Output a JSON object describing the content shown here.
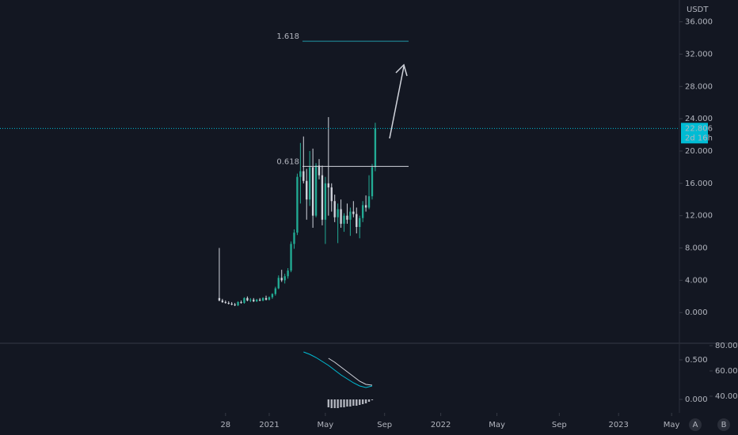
{
  "chart_data": [
    {
      "type": "candlestick",
      "currency": "USDT",
      "x": [
        0,
        1,
        2,
        3,
        4,
        5,
        6,
        7,
        8,
        9,
        10,
        11,
        12,
        13,
        14,
        15,
        16,
        17,
        18,
        19,
        20,
        21,
        22,
        23,
        24,
        25,
        26,
        27,
        28,
        29,
        30,
        31,
        32,
        33,
        34,
        35,
        36,
        37,
        38,
        39,
        40,
        41,
        42,
        43,
        44,
        45,
        46,
        47,
        48,
        49,
        50
      ],
      "open": [
        1.8,
        1.5,
        1.3,
        1.2,
        1.1,
        1.0,
        0.9,
        1.3,
        1.2,
        1.8,
        1.5,
        1.6,
        1.4,
        1.6,
        1.5,
        1.8,
        1.6,
        1.9,
        2.3,
        3.0,
        4.3,
        4.0,
        4.5,
        5.2,
        8.5,
        9.9,
        16.8,
        17.5,
        16.3,
        14.0,
        18.0,
        12.0,
        18.2,
        17.0,
        11.5,
        16.0,
        15.5,
        13.8,
        11.8,
        12.8,
        11.0,
        12.0,
        11.5,
        12.5,
        12.2,
        10.6,
        11.7,
        13.3,
        13.0,
        14.4,
        18.0
      ],
      "high": [
        8.0,
        1.7,
        1.5,
        1.4,
        1.3,
        1.2,
        1.4,
        1.5,
        1.9,
        2.0,
        1.8,
        1.8,
        1.7,
        1.8,
        1.9,
        2.1,
        2.0,
        2.4,
        3.2,
        4.6,
        5.3,
        4.8,
        5.5,
        8.8,
        10.3,
        17.2,
        21.0,
        21.8,
        17.8,
        20.0,
        20.3,
        18.5,
        19.0,
        18.2,
        16.8,
        24.2,
        16.0,
        14.6,
        13.5,
        14.0,
        12.3,
        13.5,
        13.0,
        13.8,
        13.0,
        12.0,
        13.8,
        14.5,
        17.0,
        18.4,
        23.5
      ],
      "low": [
        1.4,
        1.2,
        1.1,
        1.0,
        0.9,
        0.8,
        0.8,
        1.1,
        1.1,
        1.4,
        1.3,
        1.3,
        1.3,
        1.4,
        1.4,
        1.5,
        1.5,
        1.7,
        2.1,
        2.9,
        3.8,
        3.6,
        4.2,
        5.0,
        7.9,
        9.6,
        13.5,
        16.0,
        11.5,
        13.2,
        10.5,
        11.8,
        16.5,
        10.8,
        8.5,
        12.0,
        12.5,
        11.2,
        8.6,
        10.5,
        10.0,
        11.0,
        9.5,
        11.8,
        9.8,
        9.2,
        11.2,
        12.5,
        12.8,
        14.0,
        17.5
      ],
      "close": [
        1.5,
        1.3,
        1.2,
        1.1,
        1.0,
        0.9,
        1.3,
        1.2,
        1.8,
        1.5,
        1.6,
        1.4,
        1.6,
        1.5,
        1.8,
        1.6,
        1.9,
        2.3,
        3.0,
        4.3,
        4.0,
        4.5,
        5.2,
        8.5,
        9.9,
        16.8,
        17.5,
        16.3,
        14.0,
        18.0,
        12.0,
        18.2,
        17.0,
        11.5,
        16.0,
        15.5,
        13.8,
        11.8,
        12.8,
        11.0,
        12.0,
        11.5,
        12.5,
        12.2,
        10.6,
        11.7,
        13.3,
        13.0,
        14.4,
        18.0,
        22.806
      ],
      "up_color": "#22ab94",
      "down_color": "#d1d4dc",
      "last_price": 22.806,
      "countdown": "2d 16h",
      "last_price_color": "#00bcd4",
      "fib_levels": [
        {
          "label": "1.618",
          "price": 33.6,
          "color": "#2196a6"
        },
        {
          "label": "0.618",
          "price": 18.1,
          "color": "#d1d4dc"
        }
      ],
      "xlim": [
        -70.3,
        147.5
      ],
      "xticks": [
        {
          "value": 2,
          "label": "28"
        },
        {
          "value": 16,
          "label": "2021"
        },
        {
          "value": 34,
          "label": "May"
        },
        {
          "value": 53,
          "label": "Sep"
        },
        {
          "value": 71,
          "label": "2022"
        },
        {
          "value": 89,
          "label": "May"
        },
        {
          "value": 109,
          "label": "Sep"
        },
        {
          "value": 128,
          "label": "2023"
        },
        {
          "value": 145,
          "label": "May"
        }
      ],
      "ylim": [
        -3.7,
        38.7
      ],
      "yticks": [
        {
          "value": 0,
          "label": "0.000"
        },
        {
          "value": 4,
          "label": "4.000"
        },
        {
          "value": 8,
          "label": "8.000"
        },
        {
          "value": 12,
          "label": "12.000"
        },
        {
          "value": 16,
          "label": "16.000"
        },
        {
          "value": 20,
          "label": "20.000"
        },
        {
          "value": 24,
          "label": "24.000"
        },
        {
          "value": 28,
          "label": "28.000"
        },
        {
          "value": 32,
          "label": "32.000"
        },
        {
          "value": 36,
          "label": "36.000"
        }
      ],
      "scale_buttons": [
        "A",
        "B"
      ]
    },
    {
      "type": "indicator",
      "series": [
        {
          "color": "#00bcd4",
          "x": [
            27,
            29,
            31,
            33,
            35,
            37,
            39,
            41,
            43,
            45,
            47,
            49
          ],
          "values": [
            0.6,
            0.57,
            0.53,
            0.48,
            0.43,
            0.37,
            0.31,
            0.26,
            0.21,
            0.17,
            0.15,
            0.17
          ]
        },
        {
          "color": "#d1d4dc",
          "x": [
            35,
            37,
            39,
            41,
            43,
            45,
            47,
            49
          ],
          "values": [
            0.52,
            0.47,
            0.41,
            0.35,
            0.29,
            0.23,
            0.19,
            0.18
          ]
        }
      ],
      "histogram": {
        "color": "#b2b5be",
        "x": [
          35,
          36,
          37,
          38,
          39,
          40,
          41,
          42,
          43,
          44,
          45,
          46,
          47,
          48,
          49
        ],
        "values": [
          -0.1,
          -0.11,
          -0.11,
          -0.11,
          -0.1,
          -0.1,
          -0.09,
          -0.09,
          -0.08,
          -0.08,
          -0.07,
          -0.06,
          -0.05,
          -0.03,
          -0.01
        ]
      },
      "ylim": [
        -0.15,
        0.7
      ],
      "yticks": [
        {
          "value": 0,
          "label": "0.000"
        },
        {
          "value": 0.5,
          "label": "0.500"
        }
      ],
      "y2lim": [
        28.1,
        81.25
      ],
      "y2ticks": [
        {
          "value": 40,
          "label": "40.00"
        },
        {
          "value": 60,
          "label": "60.00"
        },
        {
          "value": 80,
          "label": "80.00"
        }
      ]
    }
  ]
}
